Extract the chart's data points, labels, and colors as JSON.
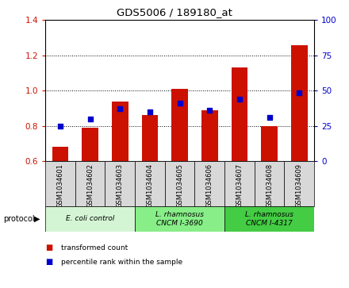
{
  "title": "GDS5006 / 189180_at",
  "samples": [
    "GSM1034601",
    "GSM1034602",
    "GSM1034603",
    "GSM1034604",
    "GSM1034605",
    "GSM1034606",
    "GSM1034607",
    "GSM1034608",
    "GSM1034609"
  ],
  "transformed_counts": [
    0.68,
    0.79,
    0.94,
    0.86,
    1.01,
    0.89,
    1.13,
    0.8,
    1.26
  ],
  "percentile_ranks_left": [
    0.8,
    0.84,
    0.9,
    0.88,
    0.93,
    0.89,
    0.95,
    0.85,
    0.99
  ],
  "ylim_left": [
    0.6,
    1.4
  ],
  "ylim_right": [
    0,
    100
  ],
  "yticks_left": [
    0.6,
    0.8,
    1.0,
    1.2,
    1.4
  ],
  "yticks_right": [
    0,
    25,
    50,
    75,
    100
  ],
  "bar_color": "#cc1100",
  "dot_color": "#0000cc",
  "protocol_groups": [
    {
      "label": "E. coli control",
      "start": 0,
      "end": 3,
      "color": "#d4f5d4"
    },
    {
      "label": "L. rhamnosus\nCNCM I-3690",
      "start": 3,
      "end": 6,
      "color": "#88ee88"
    },
    {
      "label": "L. rhamnosus\nCNCM I-4317",
      "start": 6,
      "end": 9,
      "color": "#44cc44"
    }
  ],
  "bar_width": 0.55,
  "cell_color": "#d8d8d8",
  "cell_border": "#000000",
  "legend_items": [
    {
      "label": "transformed count",
      "color": "#cc1100"
    },
    {
      "label": "percentile rank within the sample",
      "color": "#0000cc"
    }
  ]
}
